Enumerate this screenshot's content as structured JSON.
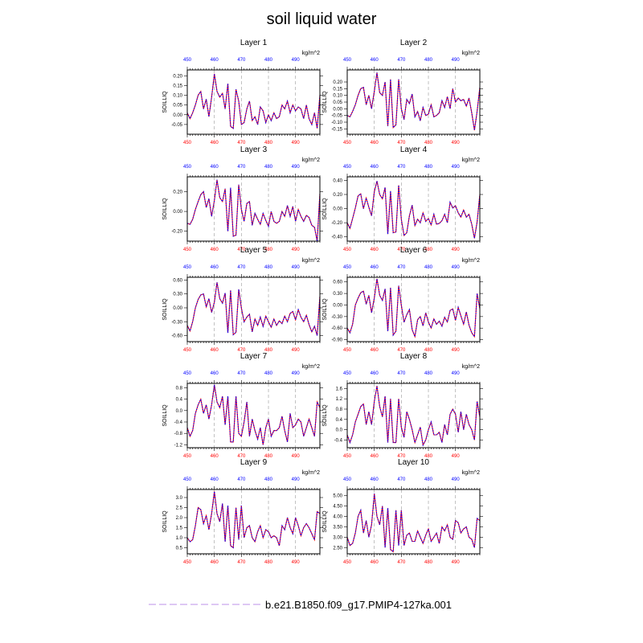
{
  "title": "soil liquid water",
  "legend": {
    "label": "b.e21.B1850.f09_g17.PMIP4-127ka.001",
    "line_color": "#c9a6ee"
  },
  "colors": {
    "bottom_ticks": "#ff0000",
    "top_ticks": "#0000ff",
    "series_a": "#ff0000",
    "series_b": "#0000ff",
    "grid": "#999999"
  },
  "chart_data": [
    {
      "type": "line",
      "title": "Layer 1",
      "units": "kg/m^2",
      "ylabel": "SOILLIQ",
      "x": [
        450,
        451,
        452,
        453,
        454,
        455,
        456,
        457,
        458,
        459,
        460,
        461,
        462,
        463,
        464,
        465,
        466,
        467,
        468,
        469,
        470,
        471,
        472,
        473,
        474,
        475,
        476,
        477,
        478,
        479,
        480,
        481,
        482,
        483,
        484,
        485,
        486,
        487,
        488,
        489,
        490,
        491,
        492,
        493,
        494,
        495,
        496,
        497,
        498,
        499
      ],
      "xticks": [
        "450",
        "460",
        "470",
        "480",
        "490"
      ],
      "ylim": [
        -0.1,
        0.23
      ],
      "yticks": [
        "0.20",
        "0.15",
        "0.10",
        "0.05",
        "0.00",
        "-0.05"
      ],
      "values": [
        0.01,
        -0.02,
        0.01,
        0.05,
        0.1,
        0.12,
        0.03,
        0.08,
        -0.01,
        0.09,
        0.21,
        0.12,
        0.09,
        0.11,
        0.03,
        0.16,
        -0.06,
        -0.07,
        0.13,
        0.07,
        -0.05,
        -0.04,
        0.03,
        0.07,
        -0.03,
        -0.01,
        -0.05,
        0.04,
        0.02,
        -0.04,
        0.0,
        -0.03,
        0.01,
        -0.02,
        -0.01,
        0.05,
        0.03,
        0.07,
        0.01,
        0.05,
        0.02,
        0.04,
        0.03,
        -0.02,
        0.05,
        -0.02,
        -0.05,
        0.01,
        -0.07,
        0.1
      ]
    },
    {
      "type": "line",
      "title": "Layer 2",
      "units": "kg/m^2",
      "ylabel": "SOILLIQ",
      "x": [
        450,
        451,
        452,
        453,
        454,
        455,
        456,
        457,
        458,
        459,
        460,
        461,
        462,
        463,
        464,
        465,
        466,
        467,
        468,
        469,
        470,
        471,
        472,
        473,
        474,
        475,
        476,
        477,
        478,
        479,
        480,
        481,
        482,
        483,
        484,
        485,
        486,
        487,
        488,
        489,
        490,
        491,
        492,
        493,
        494,
        495,
        496,
        497,
        498,
        499
      ],
      "xticks": [
        "450",
        "460",
        "470",
        "480",
        "490"
      ],
      "ylim": [
        -0.19,
        0.29
      ],
      "yticks": [
        "0.20",
        "0.15",
        "0.10",
        "0.05",
        "0.00",
        "-0.05",
        "-0.10",
        "-0.15"
      ],
      "values": [
        -0.05,
        -0.06,
        -0.02,
        0.03,
        0.1,
        0.15,
        0.16,
        0.03,
        0.1,
        0.0,
        0.13,
        0.27,
        0.12,
        0.1,
        0.2,
        -0.13,
        0.22,
        -0.14,
        -0.12,
        0.22,
        0.0,
        -0.08,
        0.07,
        0.04,
        0.11,
        -0.06,
        -0.02,
        -0.09,
        0.01,
        -0.05,
        -0.04,
        0.03,
        -0.06,
        -0.05,
        -0.03,
        0.06,
        0.01,
        0.09,
        0.0,
        0.15,
        0.05,
        0.08,
        0.06,
        0.07,
        0.02,
        0.08,
        -0.03,
        -0.16,
        -0.02,
        0.16
      ]
    },
    {
      "type": "line",
      "title": "Layer 3",
      "units": "kg/m^2",
      "ylabel": "SOILLIQ",
      "x": [
        450,
        451,
        452,
        453,
        454,
        455,
        456,
        457,
        458,
        459,
        460,
        461,
        462,
        463,
        464,
        465,
        466,
        467,
        468,
        469,
        470,
        471,
        472,
        473,
        474,
        475,
        476,
        477,
        478,
        479,
        480,
        481,
        482,
        483,
        484,
        485,
        486,
        487,
        488,
        489,
        490,
        491,
        492,
        493,
        494,
        495,
        496,
        497,
        498,
        499
      ],
      "xticks": [
        "450",
        "460",
        "470",
        "480",
        "490"
      ],
      "ylim": [
        -0.3,
        0.35
      ],
      "yticks": [
        "0.20",
        "0.00",
        "-0.20"
      ],
      "values": [
        -0.12,
        -0.13,
        -0.08,
        0.02,
        0.1,
        0.17,
        0.2,
        0.04,
        0.13,
        -0.05,
        0.11,
        0.32,
        0.14,
        0.1,
        0.23,
        -0.2,
        0.24,
        -0.25,
        -0.24,
        0.27,
        0.02,
        -0.1,
        0.08,
        0.1,
        -0.14,
        -0.02,
        -0.08,
        -0.13,
        -0.02,
        -0.09,
        -0.15,
        0.0,
        -0.1,
        -0.12,
        -0.1,
        0.0,
        -0.05,
        0.06,
        -0.05,
        0.05,
        -0.1,
        0.02,
        -0.05,
        -0.1,
        -0.04,
        -0.06,
        -0.14,
        -0.16,
        -0.3,
        0.18
      ]
    },
    {
      "type": "line",
      "title": "Layer 4",
      "units": "kg/m^2",
      "ylabel": "SOILLIQ",
      "x": [
        450,
        451,
        452,
        453,
        454,
        455,
        456,
        457,
        458,
        459,
        460,
        461,
        462,
        463,
        464,
        465,
        466,
        467,
        468,
        469,
        470,
        471,
        472,
        473,
        474,
        475,
        476,
        477,
        478,
        479,
        480,
        481,
        482,
        483,
        484,
        485,
        486,
        487,
        488,
        489,
        490,
        491,
        492,
        493,
        494,
        495,
        496,
        497,
        498,
        499
      ],
      "xticks": [
        "450",
        "460",
        "470",
        "480",
        "490"
      ],
      "ylim": [
        -0.46,
        0.45
      ],
      "yticks": [
        "0.40",
        "0.20",
        "0.00",
        "-0.20",
        "-0.40"
      ],
      "values": [
        -0.2,
        -0.28,
        -0.14,
        0.01,
        0.18,
        0.21,
        0.0,
        0.15,
        0.02,
        -0.1,
        0.24,
        0.39,
        0.2,
        0.14,
        0.3,
        -0.36,
        0.25,
        -0.34,
        -0.33,
        0.33,
        -0.15,
        -0.38,
        -0.34,
        -0.1,
        0.05,
        -0.24,
        -0.15,
        -0.2,
        -0.06,
        -0.18,
        -0.14,
        -0.23,
        -0.08,
        -0.22,
        -0.21,
        -0.17,
        -0.08,
        -0.2,
        0.09,
        0.01,
        0.04,
        -0.06,
        -0.12,
        -0.02,
        -0.12,
        -0.08,
        -0.22,
        -0.42,
        -0.19,
        0.2
      ]
    },
    {
      "type": "line",
      "title": "Layer 5",
      "units": "kg/m^2",
      "ylabel": "SOILLIQ",
      "x": [
        450,
        451,
        452,
        453,
        454,
        455,
        456,
        457,
        458,
        459,
        460,
        461,
        462,
        463,
        464,
        465,
        466,
        467,
        468,
        469,
        470,
        471,
        472,
        473,
        474,
        475,
        476,
        477,
        478,
        479,
        480,
        481,
        482,
        483,
        484,
        485,
        486,
        487,
        488,
        489,
        490,
        491,
        492,
        493,
        494,
        495,
        496,
        497,
        498,
        499
      ],
      "xticks": [
        "450",
        "460",
        "470",
        "480",
        "490"
      ],
      "ylim": [
        -0.73,
        0.66
      ],
      "yticks": [
        "0.60",
        "0.30",
        "0.00",
        "-0.30",
        "-0.60"
      ],
      "values": [
        -0.38,
        -0.5,
        -0.3,
        0.0,
        0.18,
        0.28,
        0.3,
        0.02,
        0.2,
        -0.1,
        0.12,
        0.55,
        0.2,
        0.1,
        0.32,
        -0.54,
        0.38,
        -0.58,
        -0.53,
        0.4,
        0.0,
        -0.3,
        -0.2,
        -0.14,
        -0.52,
        -0.24,
        -0.38,
        -0.2,
        -0.4,
        -0.18,
        -0.3,
        -0.42,
        -0.24,
        -0.38,
        -0.28,
        -0.34,
        -0.18,
        -0.3,
        -0.12,
        -0.08,
        -0.26,
        -0.04,
        -0.2,
        -0.3,
        -0.16,
        -0.36,
        -0.52,
        -0.4,
        -0.6,
        0.25
      ]
    },
    {
      "type": "line",
      "title": "Layer 6",
      "units": "kg/m^2",
      "ylabel": "SOILLIQ",
      "x": [
        450,
        451,
        452,
        453,
        454,
        455,
        456,
        457,
        458,
        459,
        460,
        461,
        462,
        463,
        464,
        465,
        466,
        467,
        468,
        469,
        470,
        471,
        472,
        473,
        474,
        475,
        476,
        477,
        478,
        479,
        480,
        481,
        482,
        483,
        484,
        485,
        486,
        487,
        488,
        489,
        490,
        491,
        492,
        493,
        494,
        495,
        496,
        497,
        498,
        499
      ],
      "xticks": [
        "450",
        "460",
        "470",
        "480",
        "490"
      ],
      "ylim": [
        -0.95,
        0.72
      ],
      "yticks": [
        "0.60",
        "0.30",
        "0.00",
        "-0.30",
        "-0.60",
        "-0.90"
      ],
      "values": [
        -0.6,
        -0.72,
        -0.5,
        0.0,
        0.18,
        0.32,
        0.36,
        0.02,
        0.25,
        -0.2,
        0.18,
        0.68,
        0.25,
        0.12,
        0.42,
        -0.68,
        0.45,
        -0.78,
        -0.68,
        0.5,
        0.0,
        -0.45,
        -0.25,
        -0.12,
        -0.64,
        -0.82,
        -0.38,
        -0.3,
        -0.54,
        -0.2,
        -0.44,
        -0.6,
        -0.36,
        -0.5,
        -0.42,
        -0.55,
        -0.32,
        -0.44,
        -0.14,
        -0.1,
        -0.4,
        -0.06,
        -0.28,
        -0.5,
        -0.18,
        -0.52,
        -0.72,
        -0.82,
        0.3,
        -0.1
      ]
    },
    {
      "type": "line",
      "title": "Layer 7",
      "units": "kg/m^2",
      "ylabel": "SOILLIQ",
      "x": [
        450,
        451,
        452,
        453,
        454,
        455,
        456,
        457,
        458,
        459,
        460,
        461,
        462,
        463,
        464,
        465,
        466,
        467,
        468,
        469,
        470,
        471,
        472,
        473,
        474,
        475,
        476,
        477,
        478,
        479,
        480,
        481,
        482,
        483,
        484,
        485,
        486,
        487,
        488,
        489,
        490,
        491,
        492,
        493,
        494,
        495,
        496,
        497,
        498,
        499
      ],
      "xticks": [
        "450",
        "460",
        "470",
        "480",
        "490"
      ],
      "ylim": [
        -1.3,
        0.95
      ],
      "yticks": [
        "0.8",
        "0.4",
        "0.0",
        "-0.4",
        "-0.8",
        "-1.2"
      ],
      "values": [
        -0.6,
        -0.9,
        -0.7,
        -0.1,
        0.2,
        0.4,
        -0.1,
        0.2,
        -0.3,
        0.2,
        0.9,
        0.3,
        0.1,
        0.5,
        -0.5,
        0.5,
        -1.1,
        -1.1,
        0.5,
        -0.8,
        -0.9,
        -0.4,
        0.3,
        -0.9,
        -0.3,
        -0.7,
        -1.0,
        -0.6,
        -1.2,
        -0.6,
        -0.3,
        -0.9,
        -0.7,
        -0.7,
        -0.6,
        -0.2,
        -0.7,
        -1.1,
        -0.1,
        -0.6,
        -0.5,
        -0.3,
        -0.4,
        -0.9,
        -0.6,
        -0.3,
        -0.6,
        -0.9,
        0.3,
        0.1
      ]
    },
    {
      "type": "line",
      "title": "Layer 8",
      "units": "kg/m^2",
      "ylabel": "SOILLIQ",
      "x": [
        450,
        451,
        452,
        453,
        454,
        455,
        456,
        457,
        458,
        459,
        460,
        461,
        462,
        463,
        464,
        465,
        466,
        467,
        468,
        469,
        470,
        471,
        472,
        473,
        474,
        475,
        476,
        477,
        478,
        479,
        480,
        481,
        482,
        483,
        484,
        485,
        486,
        487,
        488,
        489,
        490,
        491,
        492,
        493,
        494,
        495,
        496,
        497,
        498,
        499
      ],
      "xticks": [
        "450",
        "460",
        "470",
        "480",
        "490"
      ],
      "ylim": [
        -0.7,
        1.8
      ],
      "yticks": [
        "1.6",
        "1.2",
        "0.8",
        "0.4",
        "0.0",
        "-0.4"
      ],
      "values": [
        -0.2,
        -0.5,
        -0.2,
        0.3,
        0.6,
        0.9,
        1.0,
        0.2,
        0.7,
        0.2,
        1.1,
        1.7,
        0.9,
        0.5,
        1.3,
        -0.5,
        1.2,
        -0.5,
        -0.5,
        1.2,
        0.1,
        -0.3,
        0.7,
        0.4,
        0.0,
        -0.5,
        -0.2,
        0.1,
        -0.6,
        -0.4,
        0.0,
        0.3,
        -0.2,
        -0.2,
        -0.1,
        -0.5,
        0.2,
        -0.2,
        0.6,
        0.8,
        0.6,
        -0.1,
        0.7,
        0.0,
        0.6,
        0.2,
        0.0,
        -0.4,
        1.1,
        0.5
      ]
    },
    {
      "type": "line",
      "title": "Layer 9",
      "units": "kg/m^2",
      "ylabel": "SOILLIQ",
      "x": [
        450,
        451,
        452,
        453,
        454,
        455,
        456,
        457,
        458,
        459,
        460,
        461,
        462,
        463,
        464,
        465,
        466,
        467,
        468,
        469,
        470,
        471,
        472,
        473,
        474,
        475,
        476,
        477,
        478,
        479,
        480,
        481,
        482,
        483,
        484,
        485,
        486,
        487,
        488,
        489,
        490,
        491,
        492,
        493,
        494,
        495,
        496,
        497,
        498,
        499
      ],
      "xticks": [
        "450",
        "460",
        "470",
        "480",
        "490"
      ],
      "ylim": [
        0.2,
        3.4
      ],
      "yticks": [
        "3.0",
        "2.5",
        "2.0",
        "1.5",
        "1.0",
        "0.5"
      ],
      "values": [
        1.0,
        0.8,
        0.9,
        1.6,
        2.5,
        2.4,
        1.7,
        2.1,
        1.4,
        2.2,
        3.3,
        2.2,
        1.8,
        2.7,
        0.8,
        2.6,
        0.6,
        0.5,
        2.5,
        0.9,
        2.6,
        1.0,
        1.5,
        1.6,
        1.0,
        0.8,
        1.3,
        1.6,
        1.0,
        1.4,
        1.3,
        1.0,
        1.1,
        1.0,
        0.6,
        1.6,
        1.4,
        2.0,
        1.5,
        1.2,
        2.0,
        1.6,
        1.1,
        1.5,
        1.7,
        1.5,
        1.2,
        0.9,
        2.3,
        2.2
      ]
    },
    {
      "type": "line",
      "title": "Layer 10",
      "units": "kg/m^2",
      "ylabel": "SOILLIQ",
      "x": [
        450,
        451,
        452,
        453,
        454,
        455,
        456,
        457,
        458,
        459,
        460,
        461,
        462,
        463,
        464,
        465,
        466,
        467,
        468,
        469,
        470,
        471,
        472,
        473,
        474,
        475,
        476,
        477,
        478,
        479,
        480,
        481,
        482,
        483,
        484,
        485,
        486,
        487,
        488,
        489,
        490,
        491,
        492,
        493,
        494,
        495,
        496,
        497,
        498,
        499
      ],
      "xticks": [
        "450",
        "460",
        "470",
        "480",
        "490"
      ],
      "ylim": [
        2.2,
        5.3
      ],
      "yticks": [
        "5.00",
        "4.50",
        "4.00",
        "3.50",
        "3.00",
        "2.50"
      ],
      "values": [
        3.0,
        2.6,
        2.7,
        3.2,
        4.0,
        4.3,
        3.2,
        3.8,
        3.0,
        3.6,
        5.1,
        4.0,
        3.6,
        4.5,
        2.5,
        4.4,
        2.4,
        2.3,
        4.3,
        2.6,
        4.3,
        2.6,
        3.1,
        3.2,
        2.8,
        2.8,
        3.3,
        3.0,
        2.7,
        3.1,
        3.4,
        2.8,
        3.0,
        3.2,
        2.7,
        3.5,
        3.3,
        3.6,
        3.0,
        2.9,
        3.8,
        3.7,
        3.2,
        3.4,
        3.5,
        3.0,
        2.9,
        2.5,
        3.9,
        3.8
      ]
    }
  ]
}
